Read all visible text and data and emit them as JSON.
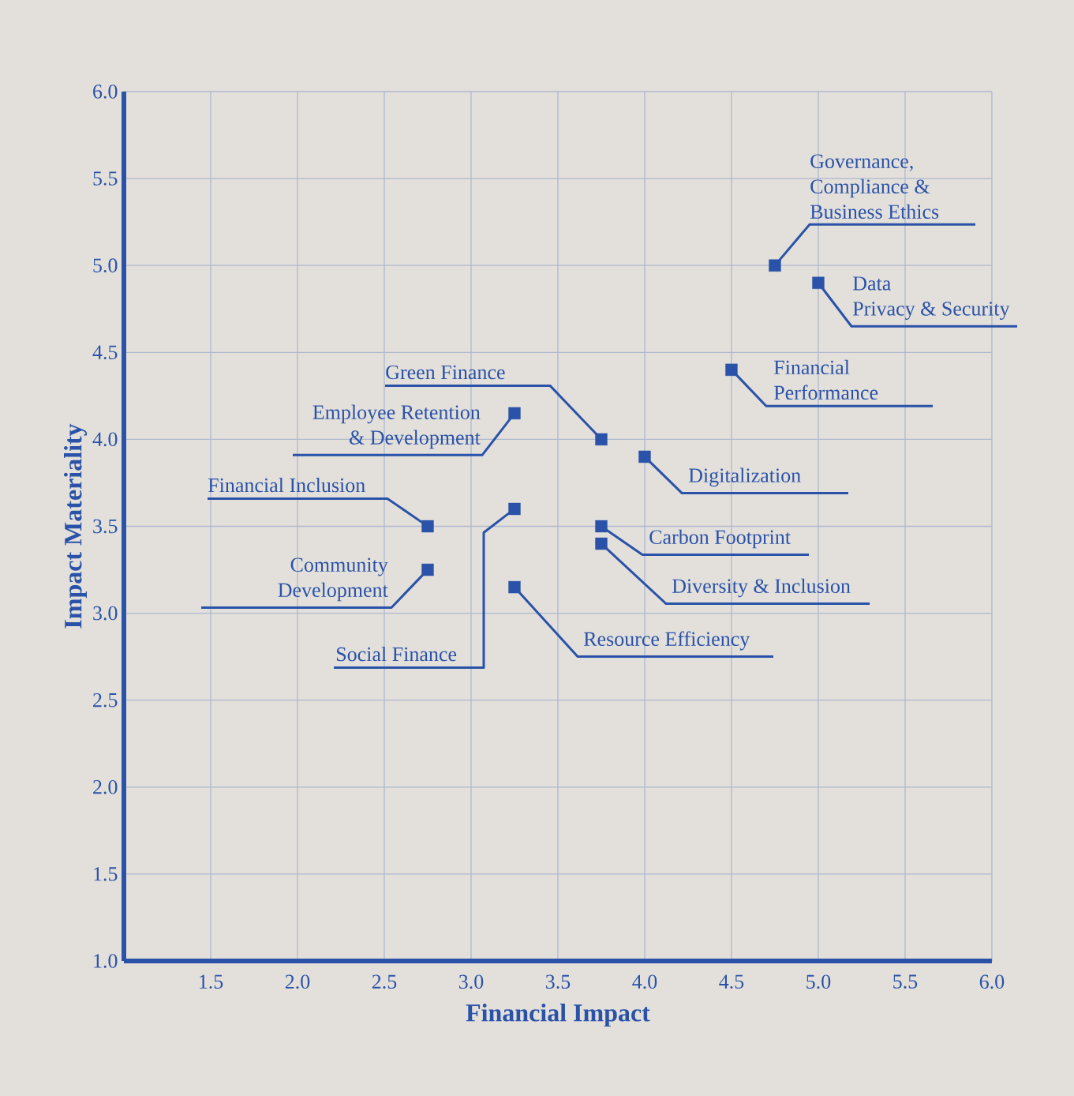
{
  "chart_data": {
    "type": "scatter",
    "xlabel": "Financial Impact",
    "ylabel": "Impact Materiality",
    "x": [
      4.75,
      5.0,
      4.5,
      3.25,
      3.75,
      4.0,
      2.75,
      3.25,
      3.75,
      3.75,
      2.75,
      3.25
    ],
    "values": [
      5.0,
      4.9,
      4.4,
      4.15,
      4.0,
      3.9,
      3.5,
      3.6,
      3.5,
      3.4,
      3.25,
      3.15
    ],
    "color": "#2a52a8",
    "marker": "square",
    "grid": true,
    "xlim": [
      1.0,
      6.0
    ],
    "ylim": [
      1.0,
      6.0
    ],
    "xticks": [
      1.5,
      {
        "value": 2,
        "label": "2.0"
      },
      2.5,
      {
        "value": 3,
        "label": "3.0"
      },
      3.5,
      {
        "value": 4,
        "label": "4.0"
      },
      4.5,
      {
        "value": 5,
        "label": "5.0"
      },
      5.5,
      {
        "value": 6,
        "label": "6.0"
      }
    ],
    "yticks": [
      {
        "value": 1,
        "label": "1.0"
      },
      1.5,
      {
        "value": 2,
        "label": "2.0"
      },
      2.5,
      {
        "value": 3,
        "label": "3.0"
      },
      3.5,
      {
        "value": 4,
        "label": "4.0"
      },
      4.5,
      {
        "value": 5,
        "label": "5.0"
      },
      5.5,
      {
        "value": 6,
        "label": "6.0"
      }
    ],
    "annotations": [
      {
        "text": "Governance, Compliance & Business Ethics",
        "x": 4.75,
        "y": 5.0
      },
      {
        "text": "Data Privacy & Security",
        "x": 5.0,
        "y": 4.9
      },
      {
        "text": "Financial Performance",
        "x": 4.5,
        "y": 4.4
      },
      {
        "text": "Employee Retention & Development",
        "x": 3.25,
        "y": 4.15
      },
      {
        "text": "Green Finance",
        "x": 3.75,
        "y": 4.0
      },
      {
        "text": "Digitalization",
        "x": 4.0,
        "y": 3.9
      },
      {
        "text": "Financial Inclusion",
        "x": 2.75,
        "y": 3.5
      },
      {
        "text": "Social Finance",
        "x": 3.25,
        "y": 3.6
      },
      {
        "text": "Carbon Footprint",
        "x": 3.75,
        "y": 3.5
      },
      {
        "text": "Diversity & Inclusion",
        "x": 3.75,
        "y": 3.4
      },
      {
        "text": "Community Development",
        "x": 2.75,
        "y": 3.25
      },
      {
        "text": "Resource Efficiency",
        "x": 3.25,
        "y": 3.15
      }
    ]
  }
}
